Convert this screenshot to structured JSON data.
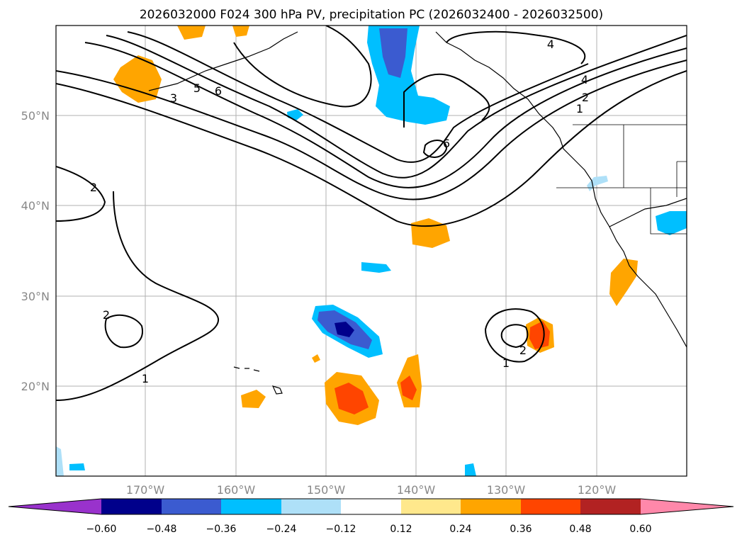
{
  "title": "2026032000 F024 300 hPa PV, precipitation PC (2026032400 - 2026032500)",
  "map": {
    "lon_labels": [
      "170°W",
      "160°W",
      "150°W",
      "140°W",
      "130°W",
      "120°W"
    ],
    "lat_labels": [
      "50°N",
      "40°N",
      "30°N",
      "20°N"
    ],
    "pv_contour_labels": [
      "4",
      "4",
      "2",
      "1",
      "3",
      "5",
      "6",
      "6",
      "2",
      "2",
      "1",
      "1",
      "2"
    ],
    "colors": {
      "ocean": "#ffffff",
      "gridline": "#b0b0b0",
      "contour": "#000000",
      "neg_light": "#aee0f8",
      "neg_mid": "#00bfff",
      "neg_strong": "#3b5bd0",
      "neg_extreme": "#00008b",
      "pos_light": "#ffe88c",
      "pos_mid": "#ffa500",
      "pos_strong": "#ff4500"
    }
  },
  "colorbar": {
    "ticks": [
      "−0.60",
      "−0.48",
      "−0.36",
      "−0.24",
      "−0.12",
      "0.12",
      "0.24",
      "0.36",
      "0.48",
      "0.60"
    ],
    "colors": [
      "#9932cc",
      "#00008b",
      "#3b5bd0",
      "#00bfff",
      "#aee0f8",
      "#ffffff",
      "#ffe88c",
      "#ffa500",
      "#ff4500",
      "#b22222",
      "#ff88aa",
      "#ff88cc"
    ]
  }
}
